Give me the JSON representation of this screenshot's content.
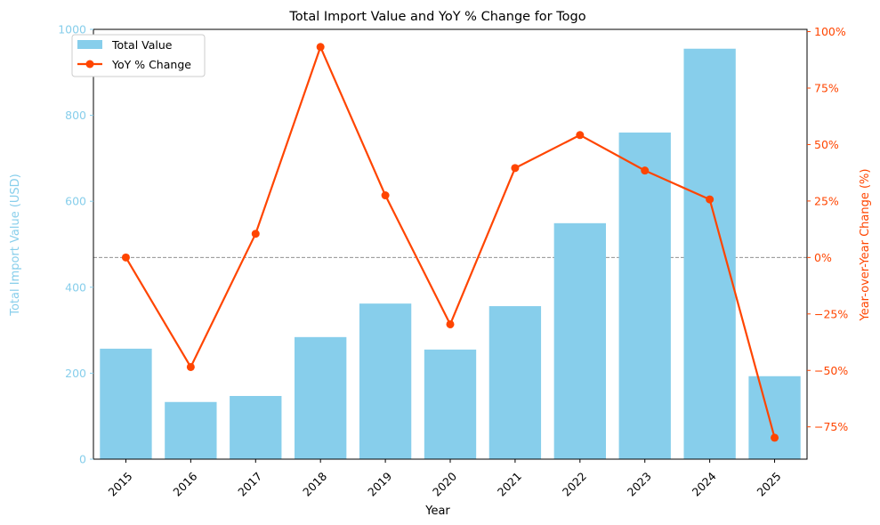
{
  "chart_data": {
    "type": "bar+line",
    "title": "Total Import Value and YoY % Change for Togo",
    "xlabel": "Year",
    "ylabel_left": "Total Import Value (USD)",
    "ylabel_right": "Year-over-Year Change (%)",
    "categories": [
      "2015",
      "2016",
      "2017",
      "2018",
      "2019",
      "2020",
      "2021",
      "2022",
      "2023",
      "2024",
      "2025"
    ],
    "series": [
      {
        "name": "Total Value",
        "type": "bar",
        "axis": "left",
        "values": [
          257,
          133,
          147,
          284,
          362,
          255,
          356,
          549,
          760,
          955,
          193
        ]
      },
      {
        "name": "YoY % Change",
        "type": "line",
        "axis": "right",
        "values": [
          0,
          -48.5,
          10.5,
          93.2,
          27.5,
          -29.6,
          39.6,
          54.2,
          38.5,
          25.7,
          -79.8
        ]
      }
    ],
    "ylim_left": [
      0,
      1000
    ],
    "yticks_left": [
      0,
      200,
      400,
      600,
      800,
      1000
    ],
    "ylim_right": [
      -89.3,
      101.0
    ],
    "yticks_right": [
      -75,
      -50,
      -25,
      0,
      25,
      50,
      75,
      100
    ],
    "ytick_right_labels": [
      "−75%",
      "−50%",
      "−25%",
      "0%",
      "25%",
      "50%",
      "75%",
      "100%"
    ],
    "reference_line_right": 0,
    "grid": false,
    "legend_position": "top-left",
    "colors": {
      "bar": "#87CEEB",
      "line": "#FF4500",
      "reference": "#808080",
      "axis": "#000000"
    }
  }
}
